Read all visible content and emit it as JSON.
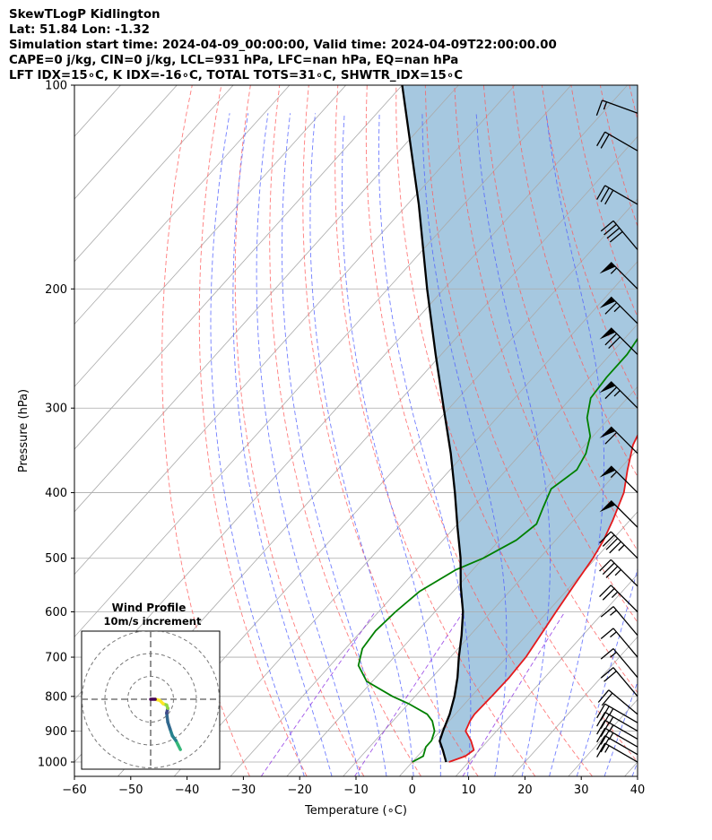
{
  "header": {
    "line1": "SkewTLogP Kidlington",
    "line2": "Lat: 51.84   Lon: -1.32",
    "line3": "Simulation start time: 2024-04-09_00:00:00, Valid time: 2024-04-09T22:00:00.00",
    "line4": "CAPE=0 j/kg, CIN=0 j/kg, LCL=931 hPa, LFC=nan hPa, EQ=nan hPa",
    "line5": "LFT IDX=15∘C, K IDX=-16∘C, TOTAL TOTS=31∘C, SHWTR_IDX=15∘C"
  },
  "chart_data": [
    {
      "type": "line",
      "subtype": "skew-t log-p",
      "xlabel": "Temperature (∘C)",
      "ylabel": "Pressure (hPa)",
      "xlim": [
        -60,
        40
      ],
      "ylim": [
        1050,
        100
      ],
      "y_scale": "log",
      "grid": true,
      "x_ticks": [
        -60,
        -50,
        -40,
        -30,
        -20,
        -10,
        0,
        10,
        20,
        30,
        40
      ],
      "x_tick_labels": [
        "−60",
        "−50",
        "−40",
        "−30",
        "−20",
        "−10",
        "0",
        "10",
        "20",
        "30",
        "40"
      ],
      "y_ticks": [
        1000,
        900,
        800,
        700,
        600,
        500,
        400,
        300,
        200,
        100
      ],
      "y_tick_labels": [
        "1000",
        "900",
        "800",
        "700",
        "600",
        "500",
        "400",
        "300",
        "200",
        "100"
      ],
      "series": [
        {
          "color": "#e41a1c",
          "p": [
            1000,
            980,
            960,
            930,
            900,
            870,
            850,
            800,
            750,
            700,
            650,
            600,
            550,
            500,
            470,
            440,
            400,
            370,
            340,
            310,
            290,
            270,
            250,
            230,
            210,
            190,
            170,
            155,
            140,
            125,
            110,
            100
          ],
          "values": [
            6.5,
            8.5,
            9,
            7,
            4.5,
            3.7,
            3.4,
            3.6,
            3.7,
            3.4,
            2.5,
            1.5,
            0.5,
            -0.5,
            -1.5,
            -3,
            -5.5,
            -8.5,
            -11.5,
            -13.5,
            -13,
            -11,
            -8,
            -5,
            -2.5,
            -1,
            0.5,
            1.5,
            4,
            10,
            15,
            16.5
          ]
        },
        {
          "color": "#008000",
          "p": [
            1000,
            980,
            950,
            930,
            900,
            870,
            850,
            820,
            800,
            760,
            720,
            680,
            640,
            600,
            560,
            520,
            500,
            470,
            445,
            420,
            395,
            370,
            350,
            330,
            310,
            290,
            270,
            250,
            230,
            210,
            190,
            170,
            150,
            130,
            115,
            100
          ],
          "values": [
            0,
            1,
            0,
            0,
            -1,
            -3,
            -5,
            -10,
            -14,
            -21,
            -25,
            -27,
            -27.5,
            -27,
            -26,
            -23,
            -20,
            -17,
            -16,
            -17.5,
            -19,
            -17.5,
            -18.5,
            -20.5,
            -24,
            -26.5,
            -27,
            -27,
            -28,
            -31,
            -34,
            -29,
            -28,
            -27.5,
            -26.5,
            -24
          ]
        },
        {
          "color": "#000000",
          "p": [
            1000,
            960,
            931,
            900,
            850,
            800,
            750,
            700,
            650,
            600,
            550,
            500,
            450,
            400,
            350,
            300,
            250,
            200,
            150,
            100
          ],
          "values": [
            6,
            3.5,
            1.5,
            0.5,
            -1,
            -3,
            -5.5,
            -8.5,
            -11.5,
            -15,
            -19.5,
            -24,
            -29.5,
            -35.5,
            -42.5,
            -51,
            -61,
            -73,
            -88,
            -110
          ]
        }
      ],
      "reference_lines": {
        "isotherms_color": "#aaaaaa",
        "dry_adiabats_color": "#ff5a5a",
        "moist_adiabats_color": "#4d5eff",
        "mixing_ratio_color": "#8a2be2"
      },
      "fill_color": "#a6c8e0",
      "wind_barbs": {
        "color": "#000000",
        "p": [
          1000,
          975,
          950,
          925,
          900,
          875,
          850,
          800,
          750,
          700,
          650,
          600,
          550,
          500,
          450,
          400,
          350,
          300,
          250,
          225,
          200,
          175,
          150,
          125,
          110
        ],
        "speed_kt": [
          15,
          20,
          25,
          25,
          25,
          25,
          20,
          20,
          15,
          15,
          15,
          25,
          35,
          45,
          50,
          55,
          60,
          65,
          70,
          65,
          55,
          40,
          30,
          20,
          15
        ],
        "dir_deg": [
          300,
          300,
          300,
          300,
          300,
          300,
          310,
          320,
          320,
          320,
          320,
          315,
          315,
          315,
          315,
          315,
          315,
          315,
          315,
          315,
          315,
          320,
          300,
          300,
          290
        ]
      }
    },
    {
      "type": "scatter",
      "subtype": "hodograph",
      "title": "Wind Profile",
      "subtitle": "10m/s increment",
      "rings": [
        10,
        20,
        30
      ],
      "colormap": "viridis",
      "u": [
        13,
        12,
        11,
        9.5,
        8.5,
        7.5,
        7,
        7.5,
        7,
        5.5,
        4,
        2,
        0
      ],
      "v": [
        -22,
        -20,
        -18,
        -16,
        -13,
        -10,
        -6,
        -4,
        -2.5,
        -2,
        -0.5,
        0,
        0
      ]
    }
  ]
}
